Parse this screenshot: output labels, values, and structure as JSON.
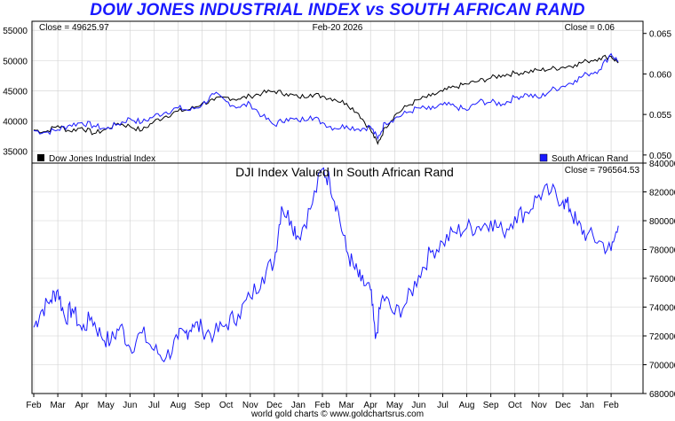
{
  "title": "DOW JONES INDUSTRIAL INDEX vs SOUTH AFRICAN RAND",
  "footer": "world gold charts © www.goldchartsrus.com",
  "top_panel": {
    "close_left": "Close = 49625.97",
    "date": "Feb-20  2026",
    "close_right": "Close = 0.06",
    "legend_left": "Dow Jones Industrial Index",
    "legend_right": "South African Rand"
  },
  "bottom_panel": {
    "subtitle": "DJI Index Valued In South African Rand",
    "close": "Close = 796564.53"
  },
  "colors": {
    "dow": "#000000",
    "rand": "#1a1aff",
    "ratio": "#1a1aff",
    "grid": "#cfcfcf"
  },
  "chart_data": [
    {
      "type": "line",
      "title": "DOW JONES INDUSTRIAL INDEX vs SOUTH AFRICAN RAND",
      "x_labels": [
        "Feb",
        "Mar",
        "Apr",
        "May",
        "Jun",
        "Jul",
        "Aug",
        "Sep",
        "Oct",
        "Nov",
        "Dec",
        "Jan",
        "Feb",
        "Mar",
        "Apr",
        "May",
        "Jun",
        "Jul",
        "Aug",
        "Sep",
        "Oct",
        "Nov",
        "Dec",
        "Jan",
        "Feb"
      ],
      "y_left_ticks": [
        "55000",
        "50000",
        "45000",
        "40000",
        "35000"
      ],
      "y_left_lim": [
        33000,
        56500
      ],
      "y_right_ticks": [
        "0.065",
        "0.060",
        "0.055",
        "0.050"
      ],
      "y_right_lim": [
        0.049,
        0.0665
      ],
      "series": [
        {
          "name": "Dow Jones Industrial Index",
          "axis": "left",
          "x": [
            0,
            0.5,
            1,
            1.5,
            2,
            2.5,
            3,
            3.5,
            4,
            4.5,
            5,
            5.5,
            6,
            6.5,
            7,
            7.5,
            8,
            8.5,
            9,
            9.5,
            10,
            10.5,
            11,
            11.5,
            12,
            12.5,
            13,
            13.5,
            14,
            14.3,
            14.6,
            15,
            15.5,
            16,
            16.5,
            17,
            17.5,
            18,
            18.5,
            19,
            19.5,
            20,
            20.5,
            21,
            21.5,
            22,
            22.5,
            23,
            23.5,
            24,
            24.3
          ],
          "values": [
            38500,
            38200,
            39200,
            38300,
            38900,
            37900,
            38600,
            39600,
            39100,
            38400,
            39900,
            40800,
            41600,
            41900,
            42900,
            43400,
            43900,
            43600,
            44100,
            44600,
            44900,
            44500,
            43900,
            44400,
            44100,
            43600,
            42900,
            41200,
            38500,
            36200,
            38900,
            40900,
            42400,
            43500,
            44100,
            44900,
            45600,
            46100,
            46600,
            47100,
            47600,
            47900,
            48100,
            48400,
            48600,
            48900,
            49300,
            49900,
            50400,
            50700,
            49600
          ]
        },
        {
          "name": "South African Rand",
          "axis": "right",
          "x": [
            0,
            0.5,
            1,
            1.5,
            2,
            2.5,
            3,
            3.5,
            4,
            4.5,
            5,
            5.5,
            6,
            6.5,
            7,
            7.5,
            8,
            8.5,
            9,
            9.5,
            10,
            10.5,
            11,
            11.5,
            12,
            12.5,
            13,
            13.5,
            14,
            14.3,
            14.6,
            15,
            15.5,
            16,
            16.5,
            17,
            17.5,
            18,
            18.5,
            19,
            19.5,
            20,
            20.5,
            21,
            21.5,
            22,
            22.5,
            23,
            23.5,
            24,
            24.3
          ],
          "values": [
            0.053,
            0.0528,
            0.0531,
            0.0537,
            0.054,
            0.0536,
            0.0532,
            0.0538,
            0.0545,
            0.054,
            0.0548,
            0.0553,
            0.0558,
            0.0555,
            0.0562,
            0.0575,
            0.0566,
            0.0559,
            0.0563,
            0.0548,
            0.0537,
            0.0545,
            0.0542,
            0.0548,
            0.054,
            0.0533,
            0.0536,
            0.0532,
            0.0535,
            0.052,
            0.054,
            0.0545,
            0.0552,
            0.0558,
            0.0556,
            0.0562,
            0.056,
            0.0555,
            0.0566,
            0.0565,
            0.0563,
            0.0571,
            0.0575,
            0.057,
            0.058,
            0.0585,
            0.0592,
            0.06,
            0.0605,
            0.0625,
            0.0615
          ]
        }
      ]
    },
    {
      "type": "line",
      "title": "DJI Index Valued In South African Rand",
      "x_labels": [
        "Feb",
        "Mar",
        "Apr",
        "May",
        "Jun",
        "Jul",
        "Aug",
        "Sep",
        "Oct",
        "Nov",
        "Dec",
        "Jan",
        "Feb",
        "Mar",
        "Apr",
        "May",
        "Jun",
        "Jul",
        "Aug",
        "Sep",
        "Oct",
        "Nov",
        "Dec",
        "Jan",
        "Feb"
      ],
      "y_ticks": [
        "840000",
        "820000",
        "800000",
        "780000",
        "760000",
        "740000",
        "720000",
        "700000",
        "680000"
      ],
      "ylim": [
        680000,
        840000
      ],
      "series": [
        {
          "name": "DJI Index Valued In South African Rand",
          "x": [
            0,
            0.3,
            0.7,
            1,
            1.3,
            1.6,
            2,
            2.4,
            2.8,
            3.2,
            3.6,
            4,
            4.5,
            5,
            5.5,
            6,
            6.3,
            6.6,
            7,
            7.5,
            8,
            8.5,
            9,
            9.5,
            10,
            10.3,
            10.7,
            11,
            11.5,
            12,
            12.3,
            12.6,
            13,
            13.3,
            13.6,
            14,
            14.2,
            14.5,
            15,
            15.5,
            16,
            16.5,
            17,
            17.5,
            18,
            18.5,
            19,
            19.5,
            20,
            20.5,
            21,
            21.5,
            22,
            22.3,
            22.6,
            23,
            23.5,
            24,
            24.3
          ],
          "values": [
            726000,
            737000,
            745000,
            752000,
            732000,
            739000,
            724000,
            733000,
            720000,
            716000,
            727000,
            712000,
            722000,
            710000,
            705000,
            718000,
            722000,
            728000,
            725000,
            721000,
            728000,
            735000,
            747000,
            761000,
            772000,
            810000,
            800000,
            789000,
            808000,
            836000,
            828000,
            810000,
            779000,
            768000,
            758000,
            752000,
            718000,
            748000,
            735000,
            743000,
            762000,
            778000,
            785000,
            792000,
            795000,
            796000,
            800000,
            792000,
            803000,
            806000,
            818000,
            820000,
            814000,
            808000,
            797000,
            790000,
            786000,
            779000,
            796500
          ]
        }
      ]
    }
  ]
}
